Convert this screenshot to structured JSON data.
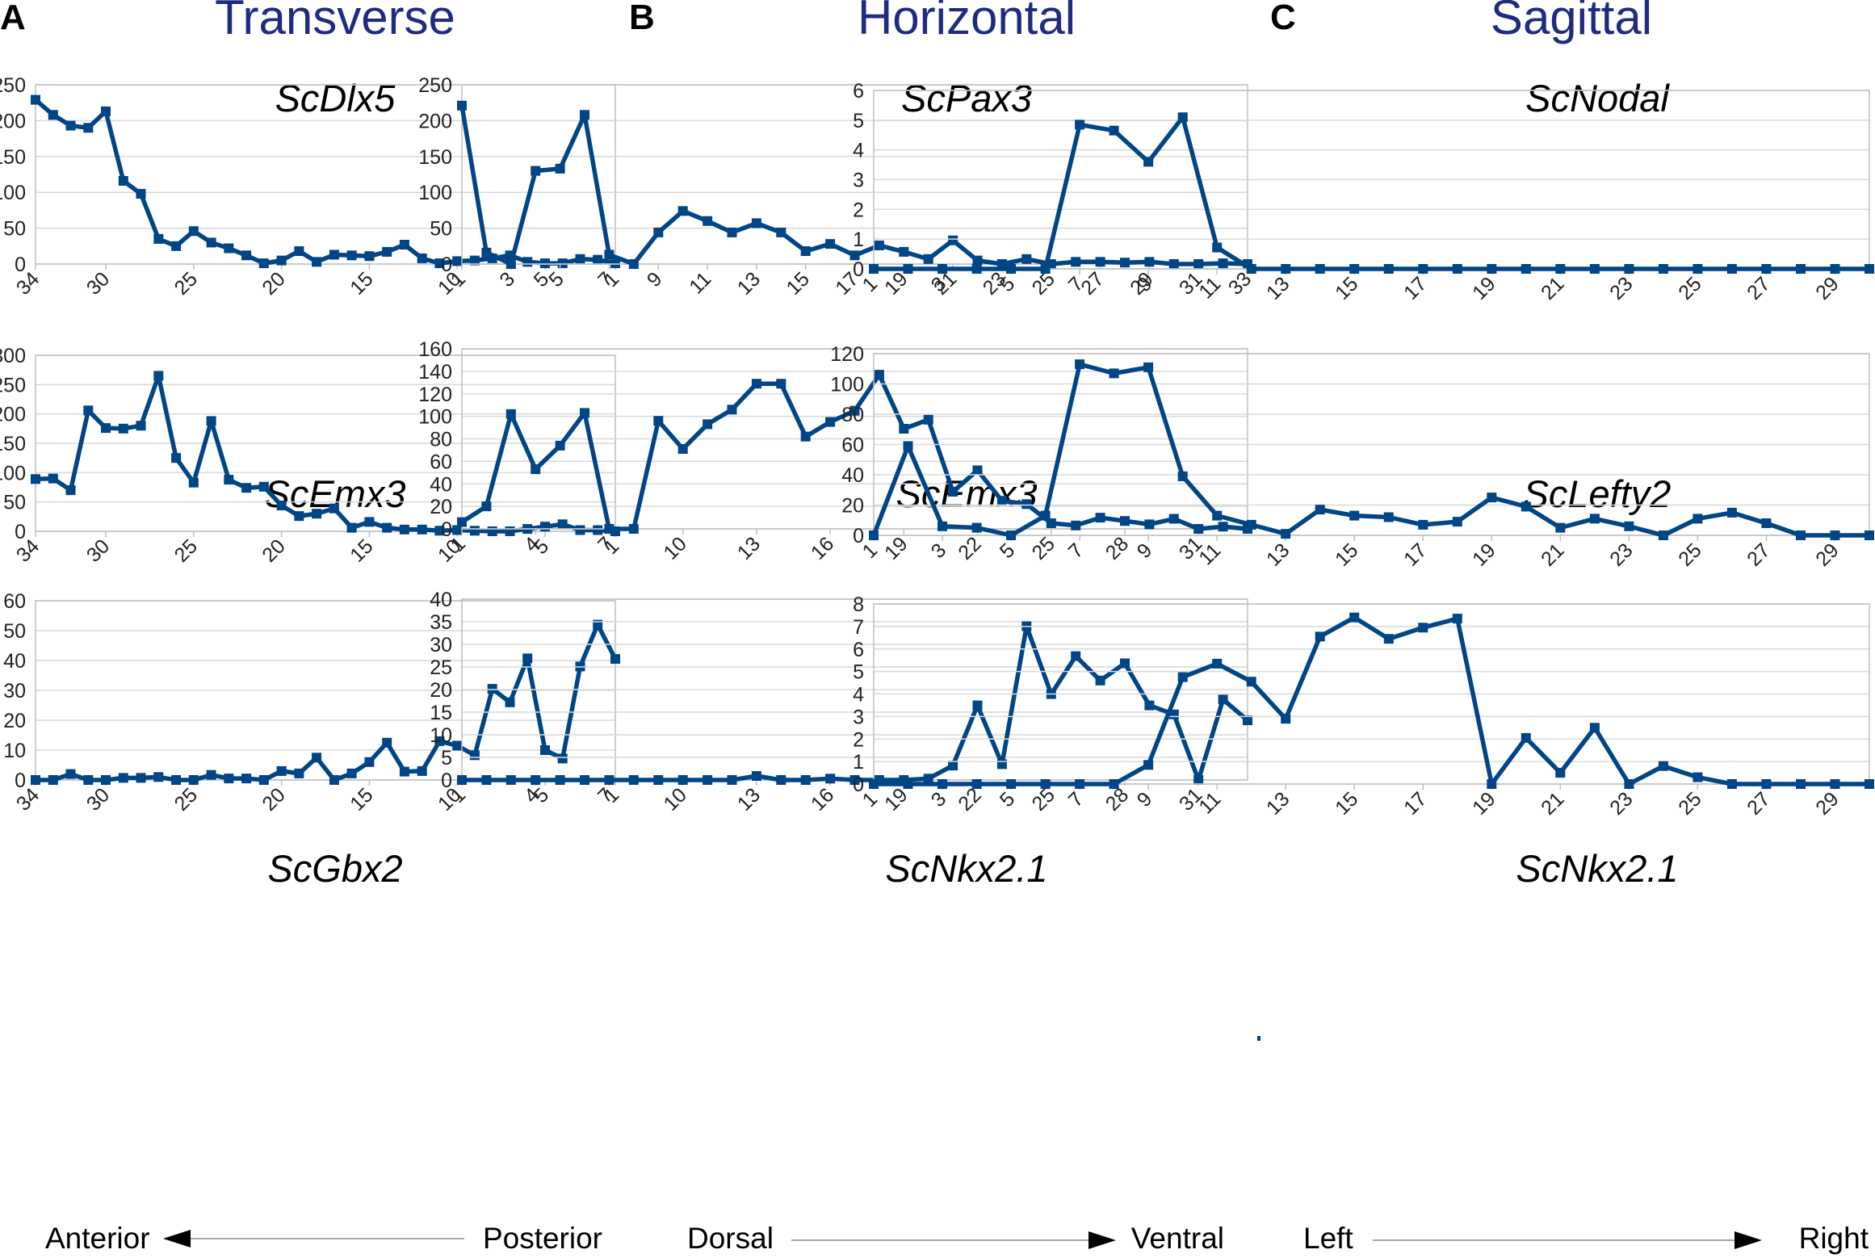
{
  "columns": [
    {
      "letter": "A",
      "title": "Transverse",
      "axis_left": "Anterior",
      "axis_right": "Posterior",
      "arrow_dir": "left"
    },
    {
      "letter": "B",
      "title": "Horizontal",
      "axis_left": "Dorsal",
      "axis_right": "Ventral",
      "arrow_dir": "right"
    },
    {
      "letter": "C",
      "title": "Sagittal",
      "axis_left": "Left",
      "axis_right": "Right",
      "arrow_dir": "right"
    }
  ],
  "colors": {
    "series": "#004586",
    "column_title": "#1f2b80",
    "grid": "#d9d9d9"
  },
  "chart_data": [
    {
      "type": "line",
      "title": "ScDlx5",
      "column": "A",
      "x_order": "descending",
      "x": [
        34,
        33,
        32,
        31,
        30,
        29,
        28,
        27,
        26,
        25,
        24,
        23,
        22,
        21,
        20,
        19,
        18,
        17,
        16,
        15,
        14,
        13,
        12,
        11,
        10,
        9,
        8,
        7,
        6,
        5,
        4,
        3,
        2,
        1
      ],
      "xticks": [
        "34",
        "30",
        "25",
        "20",
        "15",
        "10",
        "5",
        "1"
      ],
      "values": [
        229,
        208,
        193,
        190,
        213,
        116,
        98,
        35,
        25,
        46,
        30,
        22,
        12,
        1,
        5,
        18,
        3,
        13,
        12,
        11,
        17,
        27,
        8,
        1,
        4,
        5,
        8,
        12,
        3,
        1,
        1,
        7,
        6,
        1
      ],
      "ylim": [
        0,
        250
      ],
      "yticks": [
        0,
        50,
        100,
        150,
        200,
        250
      ]
    },
    {
      "type": "line",
      "title": "ScEmx3",
      "column": "A",
      "x_order": "descending",
      "x": [
        34,
        33,
        32,
        31,
        30,
        29,
        28,
        27,
        26,
        25,
        24,
        23,
        22,
        21,
        20,
        19,
        18,
        17,
        16,
        15,
        14,
        13,
        12,
        11,
        10,
        9,
        8,
        7,
        6,
        5,
        4,
        3,
        2,
        1
      ],
      "xticks": [
        "34",
        "30",
        "25",
        "20",
        "15",
        "10",
        "5",
        "1"
      ],
      "values": [
        89,
        90,
        70,
        206,
        176,
        175,
        180,
        265,
        125,
        83,
        188,
        88,
        74,
        76,
        44,
        26,
        30,
        39,
        6,
        16,
        6,
        3,
        3,
        1,
        2,
        1,
        0,
        0,
        4,
        8,
        12,
        2,
        2,
        0
      ],
      "ylim": [
        0,
        300
      ],
      "yticks": [
        0,
        50,
        100,
        150,
        200,
        250,
        300
      ]
    },
    {
      "type": "line",
      "title": "ScGbx2",
      "column": "A",
      "x_order": "descending",
      "x": [
        34,
        33,
        32,
        31,
        30,
        29,
        28,
        27,
        26,
        25,
        24,
        23,
        22,
        21,
        20,
        19,
        18,
        17,
        16,
        15,
        14,
        13,
        12,
        11,
        10,
        9,
        8,
        7,
        6,
        5,
        4,
        3,
        2,
        1
      ],
      "xticks": [
        "34",
        "30",
        "25",
        "20",
        "15",
        "10",
        "5",
        "1"
      ],
      "values": [
        0,
        0,
        2,
        0,
        0,
        0.7,
        0.7,
        1,
        0,
        0,
        1.7,
        0.5,
        0.5,
        0,
        3,
        2.2,
        7.5,
        0,
        2.2,
        6,
        12.5,
        2.8,
        3,
        13,
        11.5,
        8.3,
        30.5,
        26,
        40.7,
        10,
        7.2,
        38,
        52,
        40.5
      ],
      "ylim": [
        0,
        60
      ],
      "yticks": [
        0,
        10,
        20,
        30,
        40,
        50,
        60
      ]
    },
    {
      "type": "line",
      "title": "ScPax3",
      "column": "B",
      "x_order": "ascending",
      "x": [
        1,
        2,
        3,
        4,
        5,
        6,
        7,
        8,
        9,
        10,
        11,
        12,
        13,
        14,
        15,
        16,
        17,
        18,
        19,
        20,
        21,
        22,
        23,
        24,
        25,
        26,
        27,
        28,
        29,
        30,
        31,
        32,
        33
      ],
      "xticks": [
        "1",
        "3",
        "5",
        "7",
        "9",
        "11",
        "13",
        "15",
        "17",
        "19",
        "21",
        "23",
        "25",
        "27",
        "29",
        "31",
        "33"
      ],
      "values": [
        221,
        16,
        0,
        130,
        133,
        208,
        13,
        0,
        44,
        74,
        60,
        44,
        57,
        44,
        18,
        28,
        12,
        26,
        17,
        7,
        33,
        5,
        0,
        7,
        0,
        3,
        3,
        2,
        3,
        0,
        0,
        1,
        0
      ],
      "ylim": [
        0,
        250
      ],
      "yticks": [
        0,
        50,
        100,
        150,
        200,
        250
      ]
    },
    {
      "type": "line",
      "title": "ScEmx3",
      "column": "B",
      "x_order": "ascending",
      "x": [
        1,
        2,
        3,
        4,
        5,
        6,
        7,
        8,
        9,
        10,
        11,
        12,
        13,
        14,
        15,
        16,
        17,
        18,
        19,
        20,
        21,
        22,
        23,
        24,
        25,
        26,
        27,
        28,
        29,
        30,
        31,
        32,
        33
      ],
      "xticks": [
        "1",
        "4",
        "7",
        "10",
        "13",
        "16",
        "19",
        "22",
        "25",
        "28",
        "31"
      ],
      "values": [
        6,
        20,
        102,
        53,
        74,
        103,
        0,
        0,
        96,
        71,
        93,
        106,
        129,
        129,
        82,
        95,
        105,
        137,
        89,
        97,
        33,
        52,
        25,
        22,
        5,
        3,
        10,
        7,
        4,
        9,
        0,
        2,
        0
      ],
      "ylim": [
        0,
        160
      ],
      "yticks": [
        0,
        20,
        40,
        60,
        80,
        100,
        120,
        140,
        160
      ]
    },
    {
      "type": "line",
      "title": "ScNkx2.1",
      "column": "B",
      "x_order": "ascending",
      "x": [
        1,
        2,
        3,
        4,
        5,
        6,
        7,
        8,
        9,
        10,
        11,
        12,
        13,
        14,
        15,
        16,
        17,
        18,
        19,
        20,
        21,
        22,
        23,
        24,
        25,
        26,
        27,
        28,
        29,
        30,
        31,
        32,
        33
      ],
      "xticks": [
        "1",
        "4",
        "7",
        "10",
        "13",
        "16",
        "19",
        "22",
        "25",
        "28",
        "31"
      ],
      "values": [
        0,
        0,
        0,
        0,
        0,
        0,
        0,
        0,
        0,
        0,
        0,
        0,
        0.9,
        0,
        0,
        0.3,
        0,
        0,
        0,
        0.3,
        3.2,
        16.5,
        3.5,
        34,
        19,
        27.4,
        22,
        25.8,
        16.5,
        14.5,
        0,
        17.8,
        13.2
      ],
      "ylim": [
        0,
        40
      ],
      "yticks": [
        0,
        5,
        10,
        15,
        20,
        25,
        30,
        35,
        40
      ]
    },
    {
      "type": "line",
      "title": "ScNodal",
      "column": "C",
      "x_order": "ascending",
      "x": [
        1,
        2,
        3,
        4,
        5,
        6,
        7,
        8,
        9,
        10,
        11,
        12,
        13,
        14,
        15,
        16,
        17,
        18,
        19,
        20,
        21,
        22,
        23,
        24,
        25,
        26,
        27,
        28,
        29,
        30
      ],
      "xticks": [
        "1",
        "3",
        "5",
        "7",
        "9",
        "11",
        "13",
        "15",
        "17",
        "19",
        "21",
        "23",
        "25",
        "27",
        "29"
      ],
      "values": [
        0,
        0,
        0,
        0,
        0,
        0,
        4.85,
        4.65,
        3.6,
        5.1,
        0.72,
        0,
        0,
        0,
        0,
        0,
        0,
        0,
        0,
        0,
        0,
        0,
        0,
        0,
        0,
        0,
        0,
        0,
        0,
        0
      ],
      "ylim": [
        0,
        6
      ],
      "yticks": [
        0,
        1,
        2,
        3,
        4,
        5,
        6
      ]
    },
    {
      "type": "line",
      "title": "ScLefty2",
      "column": "C",
      "x_order": "ascending",
      "x": [
        1,
        2,
        3,
        4,
        5,
        6,
        7,
        8,
        9,
        10,
        11,
        12,
        13,
        14,
        15,
        16,
        17,
        18,
        19,
        20,
        21,
        22,
        23,
        24,
        25,
        26,
        27,
        28,
        29,
        30
      ],
      "xticks": [
        "1",
        "3",
        "5",
        "7",
        "9",
        "11",
        "13",
        "15",
        "17",
        "19",
        "21",
        "23",
        "25",
        "27",
        "29"
      ],
      "values": [
        0,
        59,
        6,
        5,
        0,
        13,
        113,
        107,
        111,
        39,
        13,
        7,
        1,
        17,
        13,
        12,
        7,
        9,
        25,
        19,
        5,
        11,
        6,
        0,
        11,
        15,
        8,
        0,
        0,
        0
      ],
      "ylim": [
        0,
        120
      ],
      "yticks": [
        0,
        20,
        40,
        60,
        80,
        100,
        120
      ]
    },
    {
      "type": "line",
      "title": "ScNkx2.1",
      "column": "C",
      "x_order": "ascending",
      "x": [
        1,
        2,
        3,
        4,
        5,
        6,
        7,
        8,
        9,
        10,
        11,
        12,
        13,
        14,
        15,
        16,
        17,
        18,
        19,
        20,
        21,
        22,
        23,
        24,
        25,
        26,
        27,
        28,
        29,
        30
      ],
      "xticks": [
        "1",
        "3",
        "5",
        "7",
        "9",
        "11",
        "13",
        "15",
        "17",
        "19",
        "21",
        "23",
        "25",
        "27",
        "29"
      ],
      "values": [
        0,
        0,
        0,
        0,
        0,
        0,
        0,
        0,
        0.85,
        4.75,
        5.35,
        4.55,
        2.9,
        6.55,
        7.4,
        6.45,
        6.95,
        7.35,
        0,
        2.05,
        0.5,
        2.5,
        0,
        0.8,
        0.3,
        0,
        0,
        0,
        0,
        0
      ],
      "ylim": [
        0,
        8
      ],
      "yticks": [
        0,
        1,
        2,
        3,
        4,
        5,
        6,
        7,
        8
      ]
    }
  ]
}
